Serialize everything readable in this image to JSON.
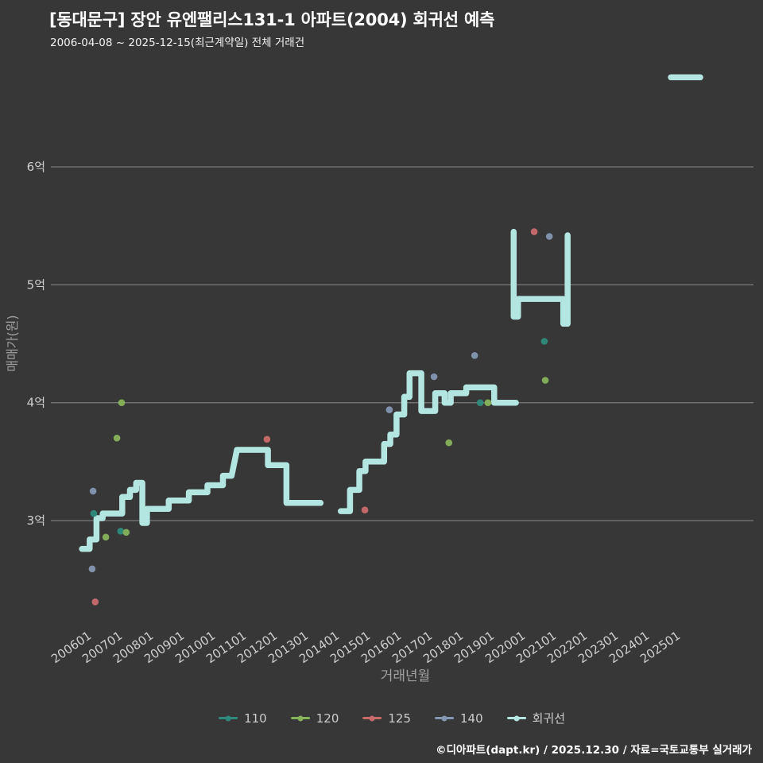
{
  "header": {
    "title": "[동대문구] 장안 유엔팰리스131-1 아파트(2004) 회귀선 예측",
    "subtitle": "2006-04-08 ~ 2025-12-15(최근계약일) 전체 거래건"
  },
  "footer": {
    "credit": "©디아파트(dapt.kr) / 2025.12.30 / 자료=국토교통부 실거래가"
  },
  "colors": {
    "background": "#373737",
    "grid": "#8a8a8a",
    "tick_label": "#cfcfcf",
    "axis_title": "#a0a0a0",
    "title_text": "#ffffff"
  },
  "chart_data": {
    "type": "line",
    "title": "[동대문구] 장안 유엔팰리스131-1 아파트(2004) 회귀선 예측",
    "xlabel": "거래년월",
    "ylabel": "매매가(원)",
    "x_ticks": [
      "200601",
      "200701",
      "200801",
      "200901",
      "201001",
      "201101",
      "201201",
      "201301",
      "201401",
      "201501",
      "201601",
      "201701",
      "201801",
      "201901",
      "202001",
      "202101",
      "202201",
      "202301",
      "202401",
      "202501"
    ],
    "y_ticks": [
      {
        "label": "3억",
        "value": 3
      },
      {
        "label": "4억",
        "value": 4
      },
      {
        "label": "5억",
        "value": 5
      },
      {
        "label": "6억",
        "value": 6
      }
    ],
    "ylim": [
      2.2,
      7.0
    ],
    "grid": "horizontal",
    "legend_position": "bottom",
    "unit": "억원",
    "series": [
      {
        "name": "110",
        "color": "#2e8b7c",
        "points": [
          [
            2006.33,
            3.06
          ],
          [
            2007.2,
            2.91
          ],
          [
            2018.8,
            4.0
          ],
          [
            2020.87,
            4.52
          ]
        ]
      },
      {
        "name": "120",
        "color": "#86b25a",
        "points": [
          [
            2006.72,
            2.86
          ],
          [
            2007.08,
            3.7
          ],
          [
            2007.23,
            4.0
          ],
          [
            2007.38,
            2.9
          ],
          [
            2017.79,
            3.66
          ],
          [
            2019.05,
            4.0
          ],
          [
            2020.9,
            4.19
          ]
        ]
      },
      {
        "name": "125",
        "color": "#c96a6a",
        "points": [
          [
            2006.38,
            2.31
          ],
          [
            2011.92,
            3.69
          ],
          [
            2015.08,
            3.09
          ],
          [
            2020.54,
            5.45
          ]
        ]
      },
      {
        "name": "140",
        "color": "#8496b1",
        "points": [
          [
            2006.28,
            2.59
          ],
          [
            2006.31,
            3.25
          ],
          [
            2015.87,
            3.94
          ],
          [
            2017.31,
            4.22
          ],
          [
            2018.62,
            4.4
          ],
          [
            2021.03,
            5.41
          ]
        ]
      }
    ],
    "regression": {
      "name": "회귀선",
      "color": "#b3e6e1",
      "segments": [
        [
          [
            2005.95,
            2.76
          ],
          [
            2006.2,
            2.76
          ],
          [
            2006.2,
            2.84
          ],
          [
            2006.42,
            2.84
          ],
          [
            2006.42,
            3.02
          ],
          [
            2006.62,
            3.02
          ],
          [
            2006.62,
            3.06
          ],
          [
            2007.25,
            3.06
          ],
          [
            2007.25,
            3.2
          ],
          [
            2007.5,
            3.2
          ],
          [
            2007.5,
            3.26
          ],
          [
            2007.7,
            3.26
          ],
          [
            2007.7,
            3.32
          ],
          [
            2007.9,
            3.32
          ],
          [
            2007.9,
            2.98
          ],
          [
            2008.05,
            2.98
          ],
          [
            2008.05,
            3.1
          ],
          [
            2008.75,
            3.1
          ],
          [
            2008.75,
            3.17
          ],
          [
            2009.4,
            3.17
          ],
          [
            2009.4,
            3.24
          ],
          [
            2010.0,
            3.24
          ],
          [
            2010.0,
            3.3
          ],
          [
            2010.5,
            3.3
          ],
          [
            2010.5,
            3.38
          ],
          [
            2010.78,
            3.38
          ],
          [
            2010.95,
            3.6
          ],
          [
            2011.95,
            3.6
          ],
          [
            2011.95,
            3.47
          ],
          [
            2012.55,
            3.47
          ],
          [
            2012.55,
            3.15
          ],
          [
            2013.65,
            3.15
          ]
        ],
        [
          [
            2014.3,
            3.08
          ],
          [
            2014.6,
            3.08
          ],
          [
            2014.6,
            3.26
          ],
          [
            2014.9,
            3.26
          ],
          [
            2014.9,
            3.42
          ],
          [
            2015.1,
            3.42
          ],
          [
            2015.1,
            3.5
          ],
          [
            2015.7,
            3.5
          ],
          [
            2015.7,
            3.65
          ],
          [
            2015.9,
            3.65
          ],
          [
            2015.9,
            3.73
          ],
          [
            2016.1,
            3.73
          ],
          [
            2016.1,
            3.9
          ],
          [
            2016.35,
            3.9
          ],
          [
            2016.35,
            4.05
          ],
          [
            2016.52,
            4.05
          ],
          [
            2016.52,
            4.25
          ],
          [
            2016.9,
            4.25
          ],
          [
            2016.9,
            3.93
          ],
          [
            2017.35,
            3.93
          ],
          [
            2017.35,
            4.08
          ],
          [
            2017.65,
            4.08
          ],
          [
            2017.65,
            4.0
          ],
          [
            2017.85,
            4.0
          ],
          [
            2017.85,
            4.08
          ],
          [
            2018.35,
            4.08
          ],
          [
            2018.35,
            4.13
          ],
          [
            2019.25,
            4.13
          ],
          [
            2019.25,
            4.0
          ],
          [
            2019.95,
            4.0
          ]
        ],
        [
          [
            2019.88,
            5.45
          ],
          [
            2019.88,
            4.73
          ],
          [
            2020.02,
            4.73
          ],
          [
            2020.02,
            4.88
          ],
          [
            2021.48,
            4.88
          ],
          [
            2021.48,
            4.67
          ],
          [
            2021.62,
            4.67
          ],
          [
            2021.62,
            5.42
          ]
        ],
        [
          [
            2024.95,
            6.76
          ],
          [
            2025.9,
            6.76
          ]
        ]
      ]
    }
  }
}
